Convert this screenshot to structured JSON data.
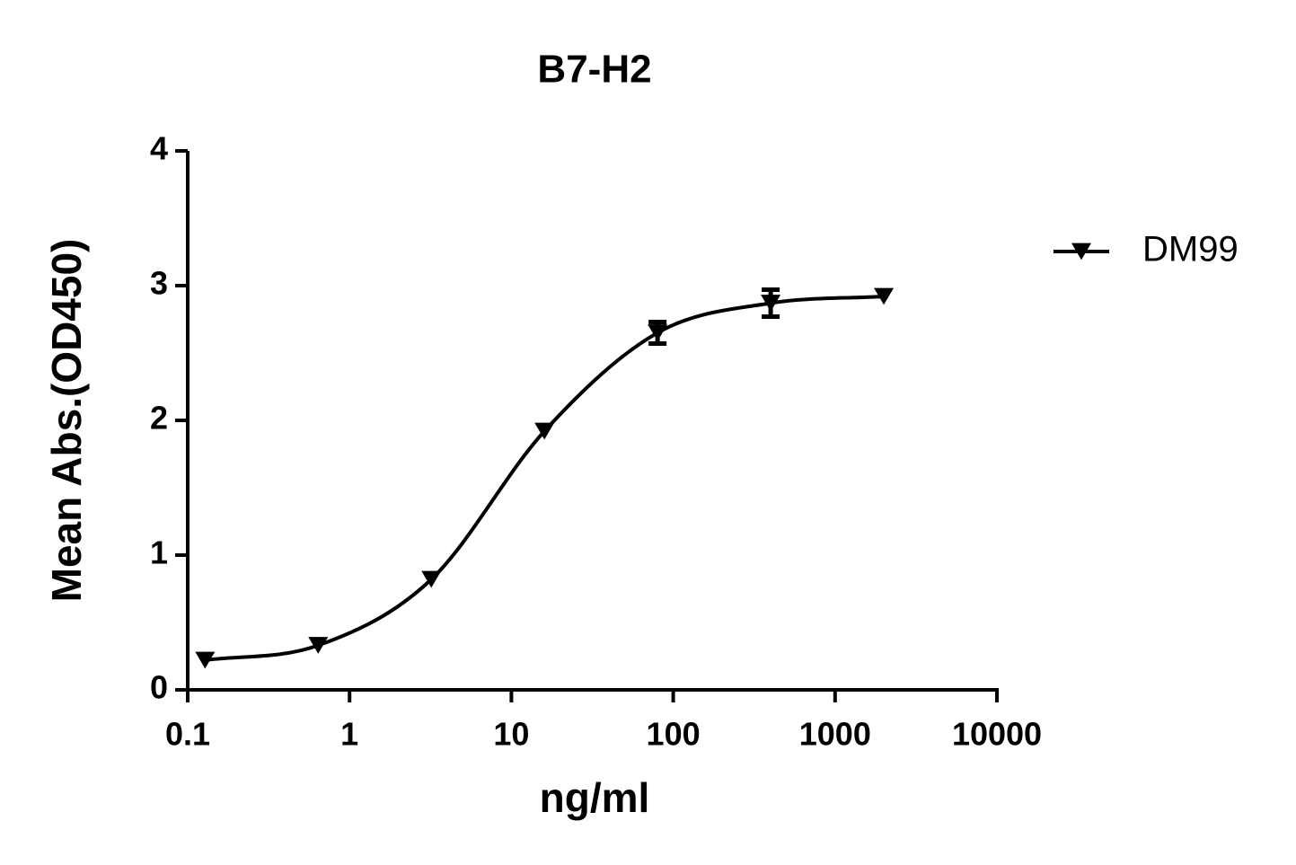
{
  "chart_data": {
    "type": "line",
    "title": "B7-H2",
    "xlabel": "ng/ml",
    "ylabel": "Mean Abs.(OD450)",
    "x": [
      0.128,
      0.64,
      3.2,
      16,
      80,
      400,
      2000
    ],
    "series": [
      {
        "name": "DM99",
        "color": "#000000",
        "marker": "triangle-down",
        "values": [
          0.22,
          0.33,
          0.82,
          1.92,
          2.65,
          2.87,
          2.92
        ],
        "errors": [
          null,
          null,
          null,
          null,
          0.08,
          0.1,
          null
        ]
      }
    ],
    "xscale": "log",
    "xlim": [
      0.1,
      10000
    ],
    "xticks": [
      0.1,
      1,
      10,
      100,
      1000,
      10000
    ],
    "ylim": [
      0,
      4
    ],
    "yticks": [
      0,
      1,
      2,
      3,
      4
    ],
    "grid": false,
    "legend": "upper right"
  }
}
